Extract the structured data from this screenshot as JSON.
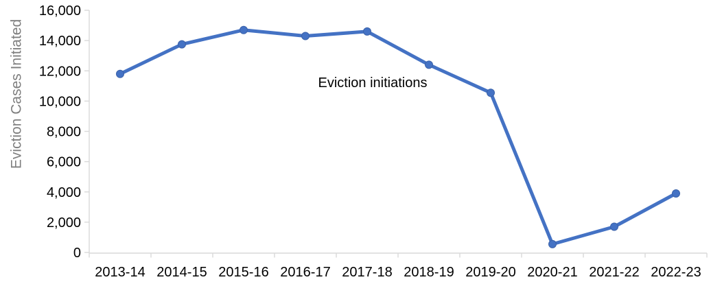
{
  "chart_data": {
    "type": "line",
    "categories": [
      "2013-14",
      "2014-15",
      "2015-16",
      "2016-17",
      "2017-18",
      "2018-19",
      "2019-20",
      "2020-21",
      "2021-22",
      "2022-23"
    ],
    "series": [
      {
        "name": "Eviction initiations",
        "values": [
          11800,
          13750,
          14700,
          14300,
          14600,
          12400,
          10550,
          550,
          1700,
          3900
        ]
      }
    ],
    "title": "",
    "xlabel": "",
    "ylabel": "Eviction Cases Initiated",
    "annotation": "Eviction initiations",
    "ylim": [
      0,
      16000
    ],
    "ytick_step": 2000,
    "ytick_labels": [
      "0",
      "2,000",
      "4,000",
      "6,000",
      "8,000",
      "10,000",
      "12,000",
      "14,000",
      "16,000"
    ],
    "grid": false,
    "legend_position": "none",
    "colors": {
      "line": "#4472C4",
      "marker": "#4472C4",
      "marker_border": "#3B62A9",
      "axis_line": "#D9D9D9",
      "tick_label": "#000000",
      "ylabel_text": "#7F7F7F",
      "annotation_text": "#000000",
      "background": "#FFFFFF"
    }
  }
}
